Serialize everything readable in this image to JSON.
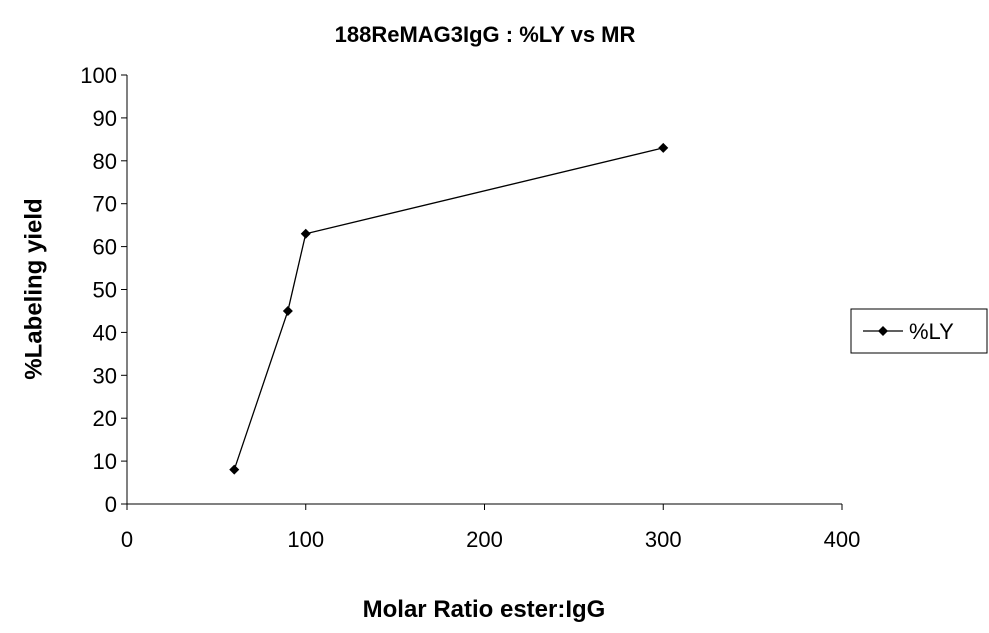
{
  "chart_data": {
    "type": "scatter",
    "title": "188ReMAG3IgG : %LY vs MR",
    "xlabel": "Molar Ratio ester:IgG",
    "ylabel": "%Labeling yield",
    "xlim": [
      0,
      400
    ],
    "ylim": [
      0,
      100
    ],
    "xticks": [
      "0",
      "100",
      "200",
      "300",
      "400"
    ],
    "yticks": [
      "0",
      "10",
      "20",
      "30",
      "40",
      "50",
      "60",
      "70",
      "80",
      "90",
      "100"
    ],
    "grid": false,
    "legend_position": "right",
    "marker": "diamond",
    "line_color": "#000000",
    "series": [
      {
        "name": "%LY",
        "x": [
          60,
          90,
          100,
          300
        ],
        "y": [
          8,
          45,
          63,
          83
        ]
      }
    ]
  }
}
